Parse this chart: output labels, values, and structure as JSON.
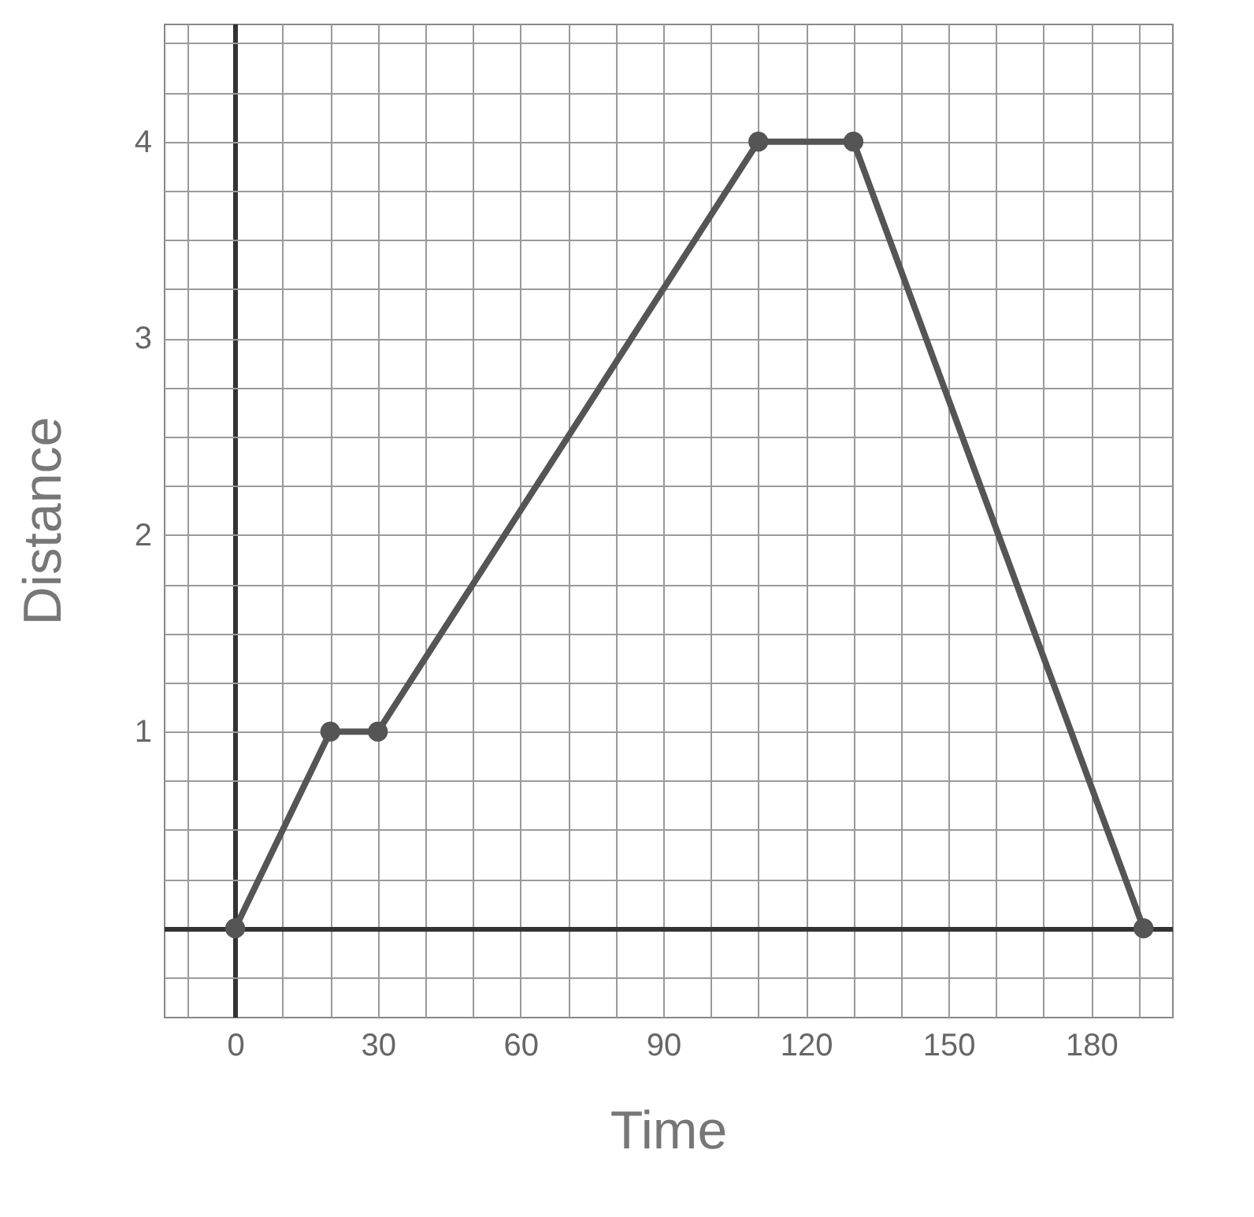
{
  "chart_data": {
    "type": "line",
    "xlabel": "Time",
    "ylabel": "Distance",
    "x": [
      0,
      20,
      30,
      110,
      130,
      191
    ],
    "series": [
      {
        "color": "#555555",
        "values": [
          0,
          1,
          1,
          4,
          4,
          0
        ]
      }
    ],
    "marker": "circle",
    "line_style": "solid",
    "grid": true,
    "legend": false,
    "xlim": [
      -15,
      197
    ],
    "ylim": [
      -0.45,
      4.6
    ],
    "xticks": [
      {
        "value": -10,
        "label": null
      },
      {
        "value": 0,
        "label": "0"
      },
      {
        "value": 10,
        "label": null
      },
      {
        "value": 20,
        "label": null
      },
      {
        "value": 30,
        "label": "30"
      },
      {
        "value": 40,
        "label": null
      },
      {
        "value": 50,
        "label": null
      },
      {
        "value": 60,
        "label": "60"
      },
      {
        "value": 70,
        "label": null
      },
      {
        "value": 80,
        "label": null
      },
      {
        "value": 90,
        "label": "90"
      },
      {
        "value": 100,
        "label": null
      },
      {
        "value": 110,
        "label": null
      },
      {
        "value": 120,
        "label": "120"
      },
      {
        "value": 130,
        "label": null
      },
      {
        "value": 140,
        "label": null
      },
      {
        "value": 150,
        "label": "150"
      },
      {
        "value": 160,
        "label": null
      },
      {
        "value": 170,
        "label": null
      },
      {
        "value": 180,
        "label": "180"
      },
      {
        "value": 190,
        "label": null
      }
    ],
    "yticks": [
      {
        "value": -0.25,
        "label": null
      },
      {
        "value": 0,
        "label": null
      },
      {
        "value": 0.25,
        "label": null
      },
      {
        "value": 0.5,
        "label": null
      },
      {
        "value": 0.75,
        "label": null
      },
      {
        "value": 1,
        "label": "1"
      },
      {
        "value": 1.25,
        "label": null
      },
      {
        "value": 1.5,
        "label": null
      },
      {
        "value": 1.75,
        "label": null
      },
      {
        "value": 2,
        "label": "2"
      },
      {
        "value": 2.25,
        "label": null
      },
      {
        "value": 2.5,
        "label": null
      },
      {
        "value": 2.75,
        "label": null
      },
      {
        "value": 3,
        "label": "3"
      },
      {
        "value": 3.25,
        "label": null
      },
      {
        "value": 3.5,
        "label": null
      },
      {
        "value": 3.75,
        "label": null
      },
      {
        "value": 4,
        "label": "4"
      },
      {
        "value": 4.25,
        "label": null
      },
      {
        "value": 4.5,
        "label": null
      }
    ]
  }
}
